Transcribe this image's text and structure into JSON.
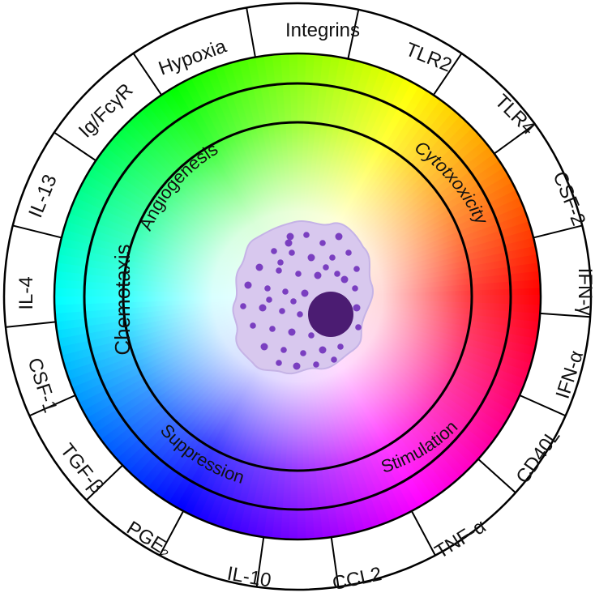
{
  "diagram": {
    "outer_labels": [
      {
        "id": "integrins",
        "text": "Integrins"
      },
      {
        "id": "tlr2",
        "text": "TLR2"
      },
      {
        "id": "tlr4",
        "text": "TLR4"
      },
      {
        "id": "csf2",
        "text": "CSF-2"
      },
      {
        "id": "ifn-gamma",
        "text": "IFN-γ"
      },
      {
        "id": "ifn-alpha",
        "text": "IFN-α"
      },
      {
        "id": "cd40l",
        "text": "CD40L"
      },
      {
        "id": "tnf-alpha",
        "text": "TNF-α"
      },
      {
        "id": "ccl2",
        "text": "CCL2"
      },
      {
        "id": "il10",
        "text": "IL-10"
      },
      {
        "id": "pge2",
        "text": "PGE₂"
      },
      {
        "id": "tgf-beta",
        "text": "TGF-β"
      },
      {
        "id": "csf1",
        "text": "CSF-1"
      },
      {
        "id": "il4",
        "text": "IL-4"
      },
      {
        "id": "il13",
        "text": "IL-13"
      },
      {
        "id": "ig-fcgr",
        "text": "Ig/FcγR"
      },
      {
        "id": "hypoxia",
        "text": "Hypoxia"
      }
    ],
    "functions": {
      "angiogenesis": "Angiogenesis",
      "cytotoxicity": "Cytotxoxicity",
      "chemotaxis": "Chemotaxis",
      "suppression": "Suppression",
      "stimulation": "Stimulation"
    },
    "colors": {
      "cell_fill": "#d8c8ee",
      "granule": "#7a3fc0",
      "nucleus": "#4b1c72",
      "ring_stroke": "#000000"
    }
  }
}
